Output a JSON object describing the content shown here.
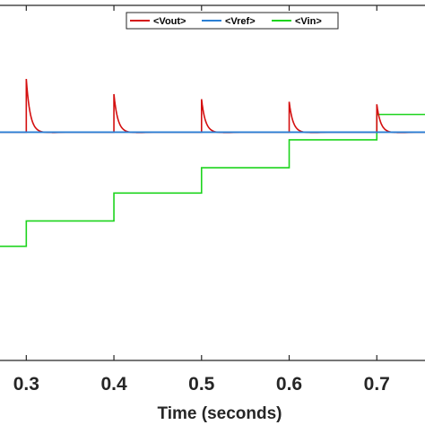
{
  "chart_data": {
    "type": "line",
    "xlabel": "Time (seconds)",
    "ylabel": "",
    "title": "",
    "xlim": [
      0.27,
      0.755
    ],
    "ylim": [
      -0.4,
      1.0
    ],
    "xticks": [
      0.3,
      0.4,
      0.5,
      0.6,
      0.7
    ],
    "xtick_labels": [
      "0.3",
      "0.4",
      "0.5",
      "0.6",
      "0.7"
    ],
    "grid": false,
    "legend_position": "top",
    "series": [
      {
        "name": "<Vout>",
        "color": "#d40f0f",
        "baseline": 0.5,
        "spike_times": [
          0.3,
          0.4,
          0.5,
          0.6,
          0.7
        ],
        "spike_peaks": [
          0.71,
          0.65,
          0.63,
          0.62,
          0.61
        ],
        "undershoot": 0.496
      },
      {
        "name": "<Vref>",
        "color": "#2a7fd4",
        "x": [
          0.27,
          0.755
        ],
        "y": [
          0.5,
          0.5
        ]
      },
      {
        "name": "<Vin>",
        "color": "#1cd41c",
        "x": [
          0.27,
          0.3,
          0.3,
          0.4,
          0.4,
          0.5,
          0.5,
          0.6,
          0.6,
          0.7,
          0.7,
          0.755
        ],
        "y": [
          0.05,
          0.05,
          0.15,
          0.15,
          0.26,
          0.26,
          0.36,
          0.36,
          0.47,
          0.47,
          0.57,
          0.57
        ]
      }
    ]
  }
}
